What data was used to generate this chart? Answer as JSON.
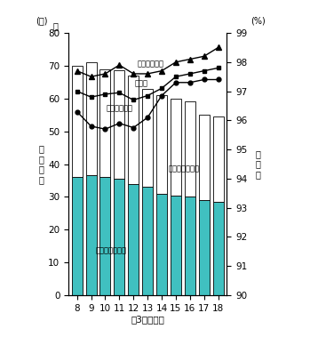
{
  "years": [
    8,
    9,
    10,
    11,
    12,
    13,
    14,
    15,
    16,
    17,
    18
  ],
  "male_graduates": [
    36,
    36.5,
    36,
    35.5,
    34,
    33,
    31,
    30.5,
    30,
    29,
    28.5
  ],
  "total_graduates": [
    70,
    71,
    69,
    68.5,
    67,
    63,
    61,
    60,
    59,
    55,
    54.5
  ],
  "rate_female": [
    97.7,
    97.5,
    97.6,
    97.9,
    97.6,
    97.6,
    97.7,
    98.0,
    98.1,
    98.2,
    98.5
  ],
  "rate_all": [
    97.0,
    96.8,
    96.9,
    96.95,
    96.7,
    96.85,
    97.1,
    97.5,
    97.6,
    97.7,
    97.8
  ],
  "rate_male": [
    96.3,
    95.8,
    95.7,
    95.9,
    95.75,
    96.1,
    96.85,
    97.3,
    97.3,
    97.4,
    97.4
  ],
  "bar_color_male": "#40C0C0",
  "bar_color_female": "#ffffff",
  "bar_edgecolor": "#000000",
  "ylim_left": [
    0,
    80
  ],
  "ylim_right": [
    90.0,
    99.0
  ],
  "yticks_left": [
    0,
    10,
    20,
    30,
    40,
    50,
    60,
    70,
    80
  ],
  "yticks_right": [
    90.0,
    91.0,
    92.0,
    93.0,
    94.0,
    95.0,
    96.0,
    97.0,
    98.0,
    99.0
  ],
  "left_unit": "(人)",
  "right_unit": "(%)",
  "left_sen": "千",
  "left_ylabel_chars": [
    "卒",
    "業",
    "者",
    "数"
  ],
  "right_ylabel_chars": [
    "進",
    "学",
    "率"
  ],
  "xlabel": "年3月卒業者",
  "label_female_rate": "進学率（女）",
  "label_all_rate": "進学率",
  "label_male_rate": "進学率（男）",
  "label_female_grad": "卒業者数（女）",
  "label_male_grad": "卒業者数（男）",
  "background_color": "#ffffff"
}
